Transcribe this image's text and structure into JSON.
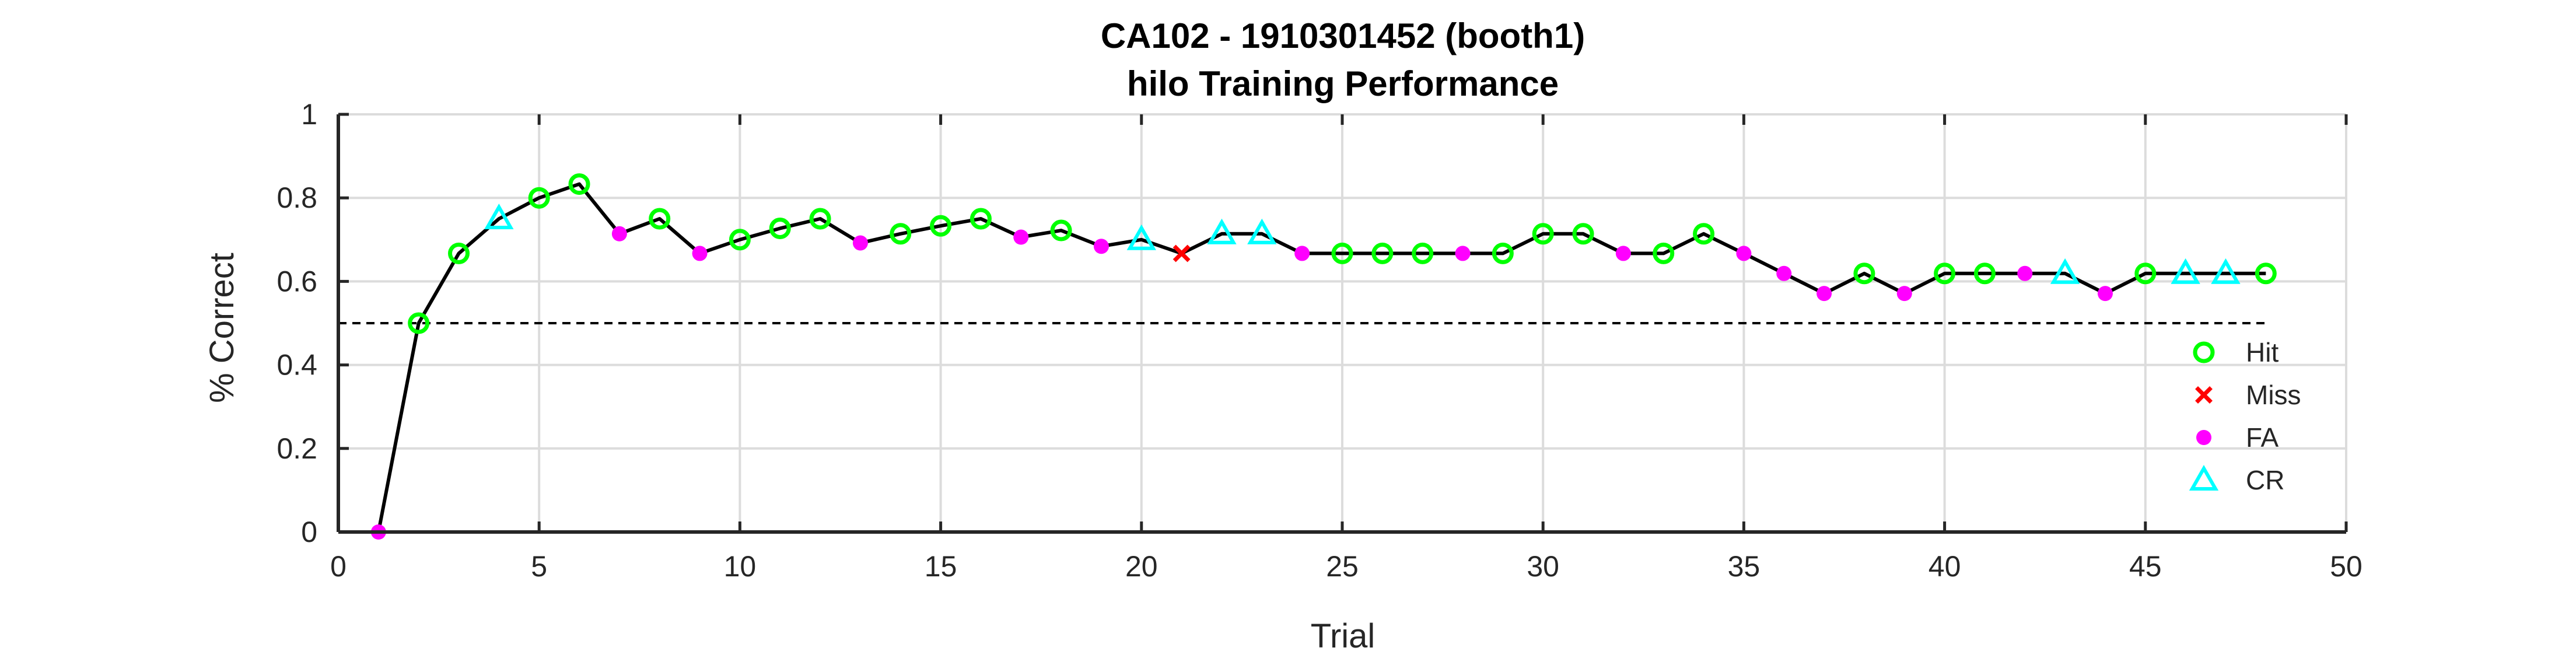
{
  "chart_data": {
    "type": "line",
    "title": "CA102 - 1910301452 (booth1)",
    "subtitle": "hilo Training Performance",
    "xlabel": "Trial",
    "ylabel": "% Correct",
    "xlim": [
      0,
      50
    ],
    "ylim": [
      0,
      1
    ],
    "xticks": [
      0,
      5,
      10,
      15,
      20,
      25,
      30,
      35,
      40,
      45,
      50
    ],
    "yticks": [
      0,
      0.2,
      0.4,
      0.6,
      0.8,
      1
    ],
    "xtick_labels": [
      "0",
      "5",
      "10",
      "15",
      "20",
      "25",
      "30",
      "35",
      "40",
      "45",
      "50"
    ],
    "ytick_labels": [
      "0",
      "0.2",
      "0.4",
      "0.6",
      "0.8",
      "1"
    ],
    "grid": true,
    "legend_position": "bottom-right",
    "reference_line": {
      "y": 0.5,
      "x_range": [
        0,
        48
      ],
      "style": "dashed"
    },
    "line_color": "#000000",
    "points": [
      {
        "x": 1,
        "y": 0.0,
        "outcome": "FA"
      },
      {
        "x": 2,
        "y": 0.5,
        "outcome": "Hit"
      },
      {
        "x": 3,
        "y": 0.667,
        "outcome": "Hit"
      },
      {
        "x": 4,
        "y": 0.75,
        "outcome": "CR"
      },
      {
        "x": 5,
        "y": 0.8,
        "outcome": "Hit"
      },
      {
        "x": 6,
        "y": 0.833,
        "outcome": "Hit"
      },
      {
        "x": 7,
        "y": 0.714,
        "outcome": "FA"
      },
      {
        "x": 8,
        "y": 0.75,
        "outcome": "Hit"
      },
      {
        "x": 9,
        "y": 0.667,
        "outcome": "FA"
      },
      {
        "x": 10,
        "y": 0.7,
        "outcome": "Hit"
      },
      {
        "x": 11,
        "y": 0.727,
        "outcome": "Hit"
      },
      {
        "x": 12,
        "y": 0.75,
        "outcome": "Hit"
      },
      {
        "x": 13,
        "y": 0.692,
        "outcome": "FA"
      },
      {
        "x": 14,
        "y": 0.714,
        "outcome": "Hit"
      },
      {
        "x": 15,
        "y": 0.733,
        "outcome": "Hit"
      },
      {
        "x": 16,
        "y": 0.75,
        "outcome": "Hit"
      },
      {
        "x": 17,
        "y": 0.706,
        "outcome": "FA"
      },
      {
        "x": 18,
        "y": 0.722,
        "outcome": "Hit"
      },
      {
        "x": 19,
        "y": 0.684,
        "outcome": "FA"
      },
      {
        "x": 20,
        "y": 0.7,
        "outcome": "CR"
      },
      {
        "x": 21,
        "y": 0.667,
        "outcome": "Miss"
      },
      {
        "x": 22,
        "y": 0.714,
        "outcome": "CR"
      },
      {
        "x": 23,
        "y": 0.714,
        "outcome": "CR"
      },
      {
        "x": 24,
        "y": 0.667,
        "outcome": "FA"
      },
      {
        "x": 25,
        "y": 0.667,
        "outcome": "Hit"
      },
      {
        "x": 26,
        "y": 0.667,
        "outcome": "Hit"
      },
      {
        "x": 27,
        "y": 0.667,
        "outcome": "Hit"
      },
      {
        "x": 28,
        "y": 0.667,
        "outcome": "FA"
      },
      {
        "x": 29,
        "y": 0.667,
        "outcome": "Hit"
      },
      {
        "x": 30,
        "y": 0.714,
        "outcome": "Hit"
      },
      {
        "x": 31,
        "y": 0.714,
        "outcome": "Hit"
      },
      {
        "x": 32,
        "y": 0.667,
        "outcome": "FA"
      },
      {
        "x": 33,
        "y": 0.667,
        "outcome": "Hit"
      },
      {
        "x": 34,
        "y": 0.714,
        "outcome": "Hit"
      },
      {
        "x": 35,
        "y": 0.667,
        "outcome": "FA"
      },
      {
        "x": 36,
        "y": 0.619,
        "outcome": "FA"
      },
      {
        "x": 37,
        "y": 0.571,
        "outcome": "FA"
      },
      {
        "x": 38,
        "y": 0.619,
        "outcome": "Hit"
      },
      {
        "x": 39,
        "y": 0.571,
        "outcome": "FA"
      },
      {
        "x": 40,
        "y": 0.619,
        "outcome": "Hit"
      },
      {
        "x": 41,
        "y": 0.619,
        "outcome": "Hit"
      },
      {
        "x": 42,
        "y": 0.619,
        "outcome": "FA"
      },
      {
        "x": 43,
        "y": 0.619,
        "outcome": "CR"
      },
      {
        "x": 44,
        "y": 0.571,
        "outcome": "FA"
      },
      {
        "x": 45,
        "y": 0.619,
        "outcome": "Hit"
      },
      {
        "x": 46,
        "y": 0.619,
        "outcome": "CR"
      },
      {
        "x": 47,
        "y": 0.619,
        "outcome": "CR"
      },
      {
        "x": 48,
        "y": 0.619,
        "outcome": "Hit"
      }
    ],
    "legend": [
      {
        "name": "Hit",
        "marker": "circle-open",
        "color": "#00ff00"
      },
      {
        "name": "Miss",
        "marker": "x",
        "color": "#ff0000"
      },
      {
        "name": "FA",
        "marker": "dot",
        "color": "#ff00ff"
      },
      {
        "name": "CR",
        "marker": "triangle-open",
        "color": "#00ffff"
      }
    ]
  }
}
